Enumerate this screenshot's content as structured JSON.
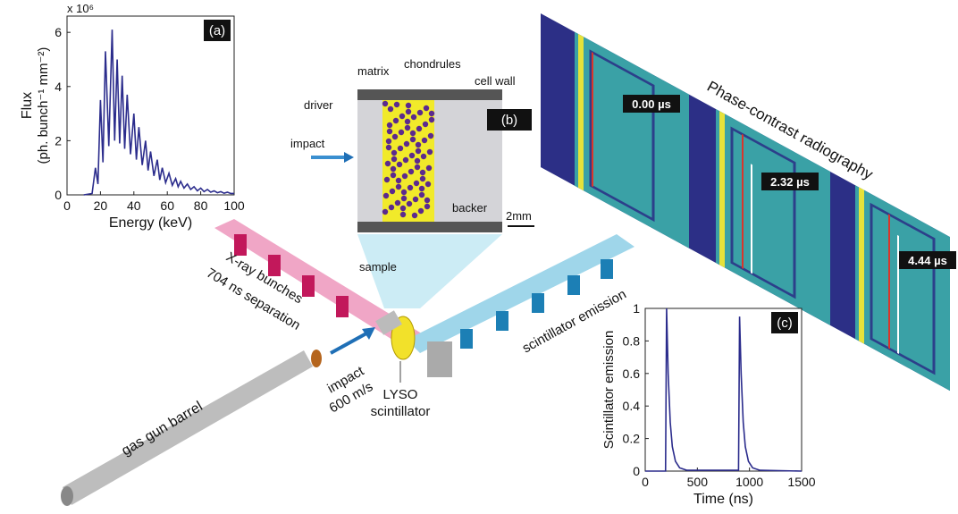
{
  "chart_data": [
    {
      "type": "line",
      "panel_label": "(a)",
      "xlabel": "Energy (keV)",
      "ylabel": "Flux",
      "ylabel_units": "(ph. bunch⁻¹ mm⁻²)",
      "scale_label": "x 10⁶",
      "x": [
        10,
        15,
        17,
        18.5,
        20,
        21.5,
        23,
        25,
        27,
        28.5,
        30,
        31.5,
        33,
        34.5,
        36,
        38,
        40,
        41.5,
        43,
        45,
        47,
        48.5,
        50,
        52,
        54,
        55.5,
        57,
        59,
        61,
        63,
        65,
        66.5,
        68,
        70,
        72,
        74,
        76,
        78,
        80,
        82,
        84,
        86,
        88,
        90,
        92,
        94,
        96,
        98,
        100
      ],
      "series": [
        {
          "color": "#2b2c8c",
          "values": [
            0,
            0.05,
            1.0,
            0.4,
            3.5,
            1.2,
            5.3,
            1.8,
            6.1,
            2.0,
            5.0,
            1.9,
            4.4,
            1.7,
            3.7,
            1.5,
            3.0,
            1.3,
            2.5,
            1.1,
            2.0,
            0.9,
            1.6,
            0.7,
            1.3,
            0.55,
            1.0,
            0.45,
            0.8,
            0.35,
            0.6,
            0.3,
            0.5,
            0.25,
            0.4,
            0.2,
            0.3,
            0.15,
            0.25,
            0.12,
            0.2,
            0.1,
            0.15,
            0.08,
            0.12,
            0.06,
            0.1,
            0.05,
            0.05
          ]
        }
      ],
      "xlim": [
        0,
        100
      ],
      "xticks": [
        0,
        20,
        40,
        60,
        80,
        100
      ],
      "ylim": [
        0,
        6.6
      ],
      "yticks": [
        0,
        2,
        4,
        6
      ]
    },
    {
      "type": "line",
      "panel_label": "(c)",
      "xlabel": "Time (ns)",
      "ylabel": "Scintillator emission",
      "x": [
        0,
        195,
        205,
        220,
        240,
        260,
        290,
        330,
        400,
        895,
        905,
        920,
        940,
        960,
        990,
        1030,
        1100,
        1500
      ],
      "series": [
        {
          "color": "#2b2c8c",
          "values": [
            0,
            0,
            1.0,
            0.6,
            0.3,
            0.15,
            0.06,
            0.02,
            0.005,
            0.005,
            0.95,
            0.6,
            0.3,
            0.15,
            0.06,
            0.02,
            0.005,
            0
          ]
        }
      ],
      "xlim": [
        0,
        1500
      ],
      "xticks": [
        0,
        500,
        1000,
        1500
      ],
      "ylim": [
        0,
        1
      ],
      "yticks": [
        0,
        0.2,
        0.4,
        0.6,
        0.8,
        1
      ]
    }
  ],
  "diagram": {
    "panel_b": "(b)",
    "matrix": "matrix",
    "chondrules": "chondrules",
    "cell_wall": "cell wall",
    "driver": "driver",
    "impact_b": "impact",
    "backer": "backer",
    "scale": "2mm",
    "sample": "sample",
    "xray1": "X-ray bunches",
    "xray2": "704 ns separation",
    "impact1": "impact",
    "impact2": "600 m/s",
    "barrel": "gas gun barrel",
    "lyso1": "LYSO",
    "lyso2": "scintillator",
    "scint": "scintillator emission",
    "radiography": "Phase-contrast radiography",
    "times": [
      "0.00 µs",
      "2.32 µs",
      "4.44 µs"
    ]
  }
}
